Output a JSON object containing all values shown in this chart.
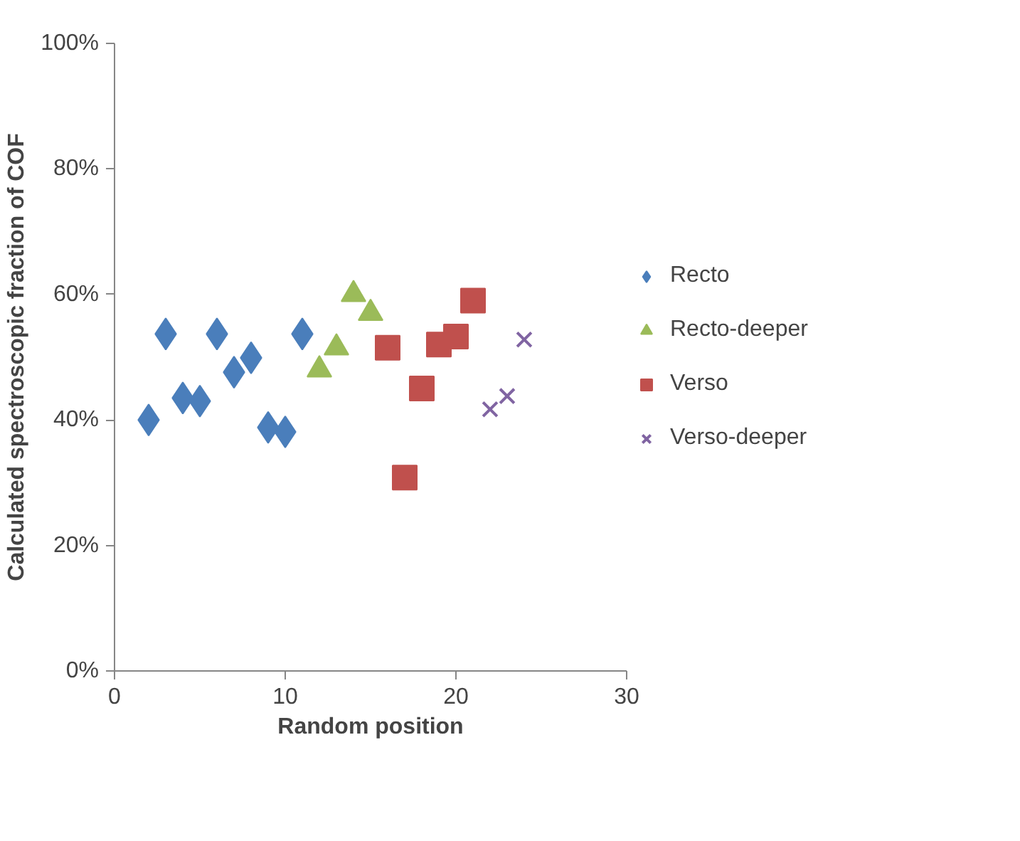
{
  "chart_data": {
    "type": "scatter",
    "xlabel": "Random position",
    "ylabel": "Calculated spectroscopic fraction of COF",
    "xlim": [
      0,
      30
    ],
    "xticks": [
      0,
      10,
      20,
      30
    ],
    "ylim": [
      0,
      100
    ],
    "yticks": [
      {
        "value": 0,
        "label": "0%"
      },
      {
        "value": 20,
        "label": "20%"
      },
      {
        "value": 40,
        "label": "40%"
      },
      {
        "value": 60,
        "label": "60%"
      },
      {
        "value": 80,
        "label": "80%"
      },
      {
        "value": 100,
        "label": "100%"
      }
    ],
    "grid": false,
    "legend": "right",
    "series": [
      {
        "name": "Recto",
        "color": "#4a7ebb",
        "marker": "diamond",
        "x": [
          2,
          3,
          4,
          5,
          6,
          7,
          8,
          9,
          10,
          11
        ],
        "values": [
          40,
          53.7,
          43.5,
          43,
          53.7,
          47.6,
          49.9,
          38.8,
          38.1,
          53.7
        ]
      },
      {
        "name": "Recto-deeper",
        "color": "#9bbb59",
        "marker": "triangle",
        "x": [
          12,
          13,
          14,
          15
        ],
        "values": [
          48,
          51.5,
          60,
          57
        ]
      },
      {
        "name": "Verso",
        "color": "#c0504d",
        "marker": "square",
        "x": [
          16,
          17,
          18,
          19,
          20,
          21
        ],
        "values": [
          51.5,
          30.8,
          45,
          52,
          53.3,
          59
        ]
      },
      {
        "name": "Verso-deeper",
        "color": "#8064a2",
        "marker": "cross",
        "x": [
          22,
          23,
          24
        ],
        "values": [
          41.7,
          43.8,
          52.8
        ]
      }
    ]
  }
}
